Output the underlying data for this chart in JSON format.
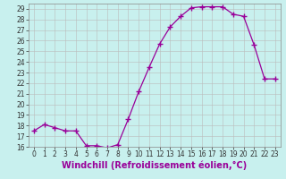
{
  "x": [
    0,
    1,
    2,
    3,
    4,
    5,
    6,
    7,
    8,
    9,
    10,
    11,
    12,
    13,
    14,
    15,
    16,
    17,
    18,
    19,
    20,
    21,
    22,
    23
  ],
  "y": [
    17.5,
    18.1,
    17.8,
    17.5,
    17.5,
    16.1,
    16.1,
    15.9,
    16.2,
    18.6,
    21.2,
    23.5,
    25.7,
    27.3,
    28.3,
    29.1,
    29.2,
    29.2,
    29.2,
    28.5,
    28.3,
    25.6,
    22.4,
    22.4
  ],
  "line_color": "#990099",
  "marker": "+",
  "marker_size": 4,
  "bg_color": "#c8f0ee",
  "grid_color": "#bbbbbb",
  "xlabel": "Windchill (Refroidissement éolien,°C)",
  "ylim": [
    16,
    29.5
  ],
  "xlim": [
    -0.5,
    23.5
  ],
  "yticks": [
    16,
    17,
    18,
    19,
    20,
    21,
    22,
    23,
    24,
    25,
    26,
    27,
    28,
    29
  ],
  "xticks": [
    0,
    1,
    2,
    3,
    4,
    5,
    6,
    7,
    8,
    9,
    10,
    11,
    12,
    13,
    14,
    15,
    16,
    17,
    18,
    19,
    20,
    21,
    22,
    23
  ],
  "tick_fontsize": 5.5,
  "xlabel_fontsize": 7.0
}
